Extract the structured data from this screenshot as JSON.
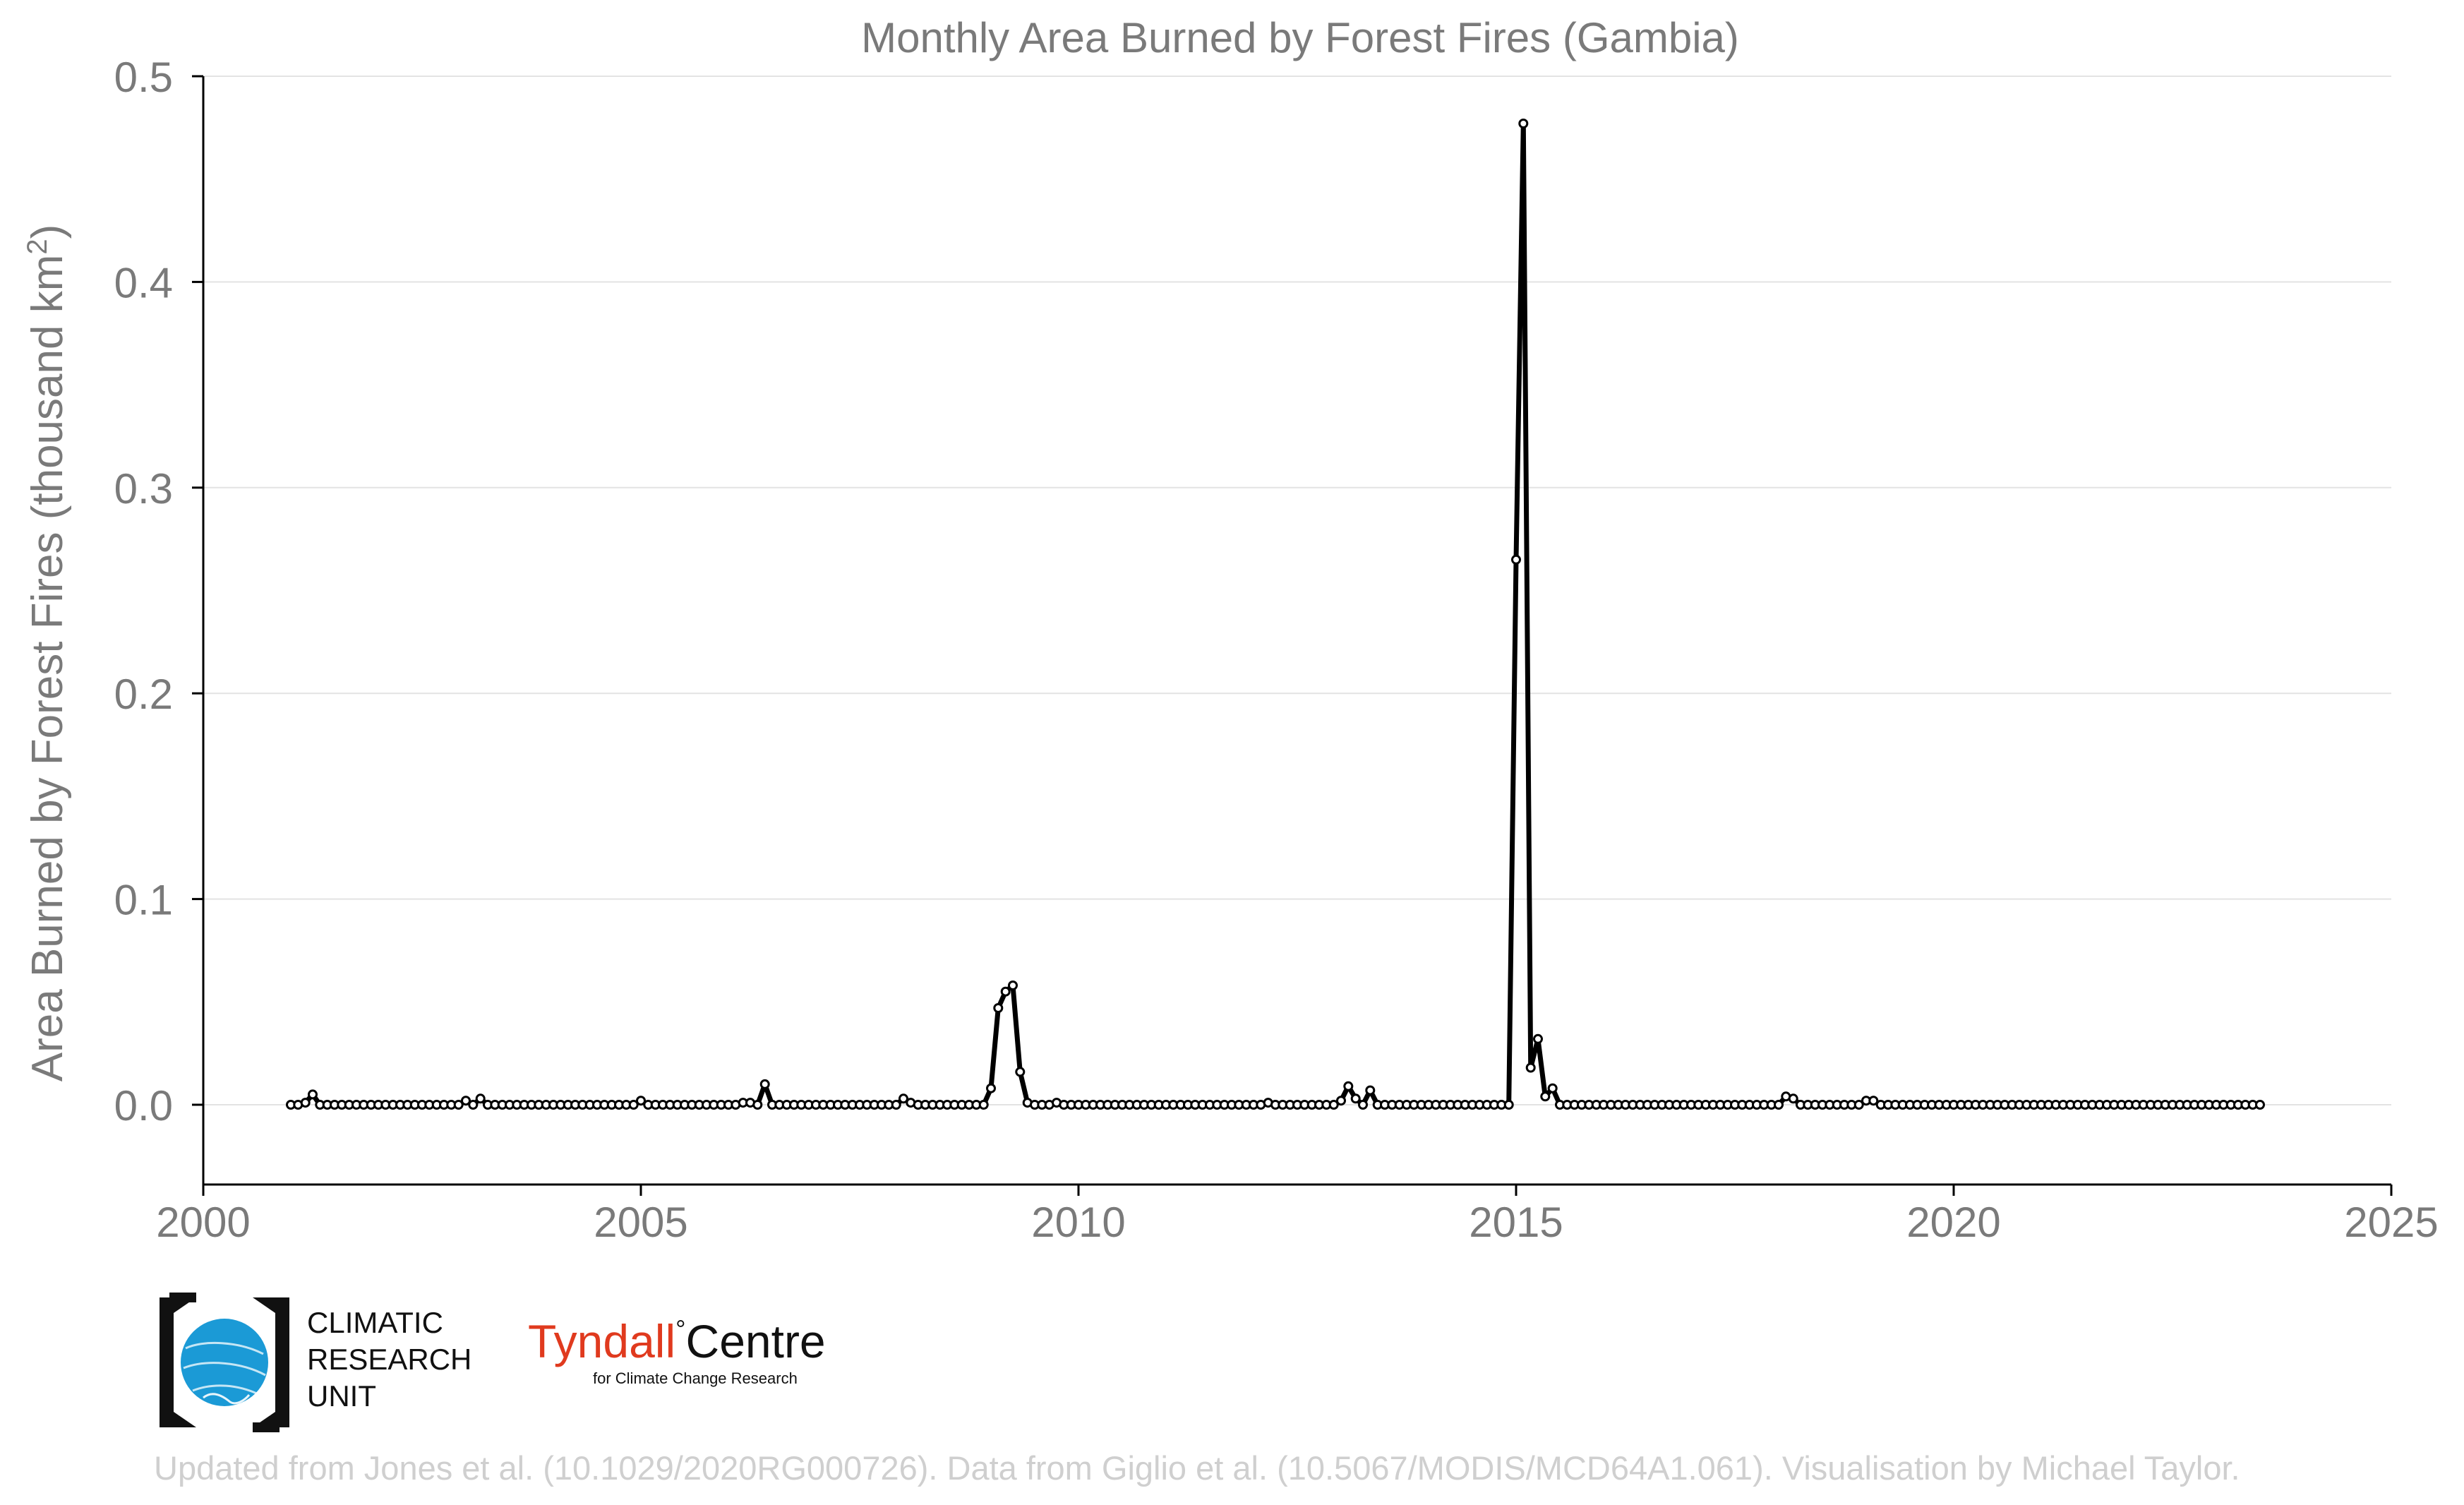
{
  "chart_data": {
    "type": "line",
    "title": "Monthly Area Burned by Forest Fires (Gambia)",
    "ylabel": "Area Burned by Forest Fires (thousand km",
    "ylabel_sup": "2",
    "ylabel_close": ")",
    "xlim": [
      2000,
      2025
    ],
    "ylim": [
      -0.04,
      0.5
    ],
    "x_ticks": [
      2000,
      2005,
      2010,
      2015,
      2020,
      2025
    ],
    "x_tick_labels": [
      "2000",
      "2005",
      "2010",
      "2015",
      "2020",
      "2025"
    ],
    "y_ticks": [
      0.0,
      0.1,
      0.2,
      0.3,
      0.4,
      0.5
    ],
    "y_tick_labels": [
      "0.0",
      "0.1",
      "0.2",
      "0.3",
      "0.4",
      "0.5"
    ],
    "grid": "horizontal",
    "start": "2001-01",
    "series": [
      {
        "values": [
          0,
          0,
          0.001,
          0.005,
          0,
          0,
          0,
          0,
          0,
          0,
          0,
          0,
          0,
          0,
          0,
          0,
          0,
          0,
          0,
          0,
          0,
          0,
          0,
          0,
          0.002,
          0,
          0.003,
          0,
          0,
          0,
          0,
          0,
          0,
          0,
          0,
          0,
          0,
          0,
          0,
          0,
          0,
          0,
          0,
          0,
          0,
          0,
          0,
          0,
          0.002,
          0,
          0,
          0,
          0,
          0,
          0,
          0,
          0,
          0,
          0,
          0,
          0,
          0,
          0.001,
          0.001,
          0,
          0.01,
          0,
          0,
          0,
          0,
          0,
          0,
          0,
          0,
          0,
          0,
          0,
          0,
          0,
          0,
          0,
          0,
          0,
          0,
          0.003,
          0.001,
          0,
          0,
          0,
          0,
          0,
          0,
          0,
          0,
          0,
          0,
          0.008,
          0.047,
          0.055,
          0.058,
          0.016,
          0.001,
          0,
          0,
          0,
          0.001,
          0,
          0,
          0,
          0,
          0,
          0,
          0,
          0,
          0,
          0,
          0,
          0,
          0,
          0,
          0,
          0,
          0,
          0,
          0,
          0,
          0,
          0,
          0,
          0,
          0,
          0,
          0,
          0,
          0.001,
          0,
          0,
          0,
          0,
          0,
          0,
          0,
          0,
          0,
          0.002,
          0.009,
          0.003,
          0,
          0.007,
          0,
          0,
          0,
          0,
          0,
          0,
          0,
          0,
          0,
          0,
          0,
          0,
          0,
          0,
          0,
          0,
          0,
          0,
          0,
          0.265,
          0.477,
          0.018,
          0.032,
          0.004,
          0.008,
          0,
          0,
          0,
          0,
          0,
          0,
          0,
          0,
          0,
          0,
          0,
          0,
          0,
          0,
          0,
          0,
          0,
          0,
          0,
          0,
          0,
          0,
          0,
          0,
          0,
          0,
          0,
          0,
          0,
          0,
          0,
          0.004,
          0.003,
          0,
          0,
          0,
          0,
          0,
          0,
          0,
          0,
          0,
          0.002,
          0.002,
          0,
          0,
          0,
          0,
          0,
          0,
          0,
          0,
          0,
          0,
          0,
          0,
          0,
          0,
          0,
          0,
          0,
          0,
          0,
          0,
          0,
          0,
          0,
          0,
          0,
          0,
          0,
          0,
          0,
          0,
          0,
          0,
          0,
          0,
          0,
          0,
          0,
          0,
          0,
          0,
          0,
          0,
          0,
          0,
          0,
          0,
          0,
          0,
          0,
          0,
          0,
          0,
          0
        ]
      }
    ]
  },
  "logos": {
    "cru": [
      "CLIMATIC",
      "RESEARCH",
      "UNIT"
    ],
    "tyndall_red": "Tyndall",
    "tyndall_degree": "°",
    "tyndall_black": "Centre",
    "tyndall_sub": "for Climate Change Research"
  },
  "credit": "Updated from Jones et al. (10.1029/2020RG000726). Data from Giglio et al. (10.5067/MODIS/MCD64A1.061). Visualisation by Michael Taylor.",
  "colors": {
    "line": "#000000",
    "marker_fill": "#ffffff",
    "text": "#7a7a7a",
    "grid": "#e3e3e3",
    "credit": "#cfcfcf",
    "cru_blue": "#1b9ad6",
    "tyndall_red": "#e03a1e"
  }
}
